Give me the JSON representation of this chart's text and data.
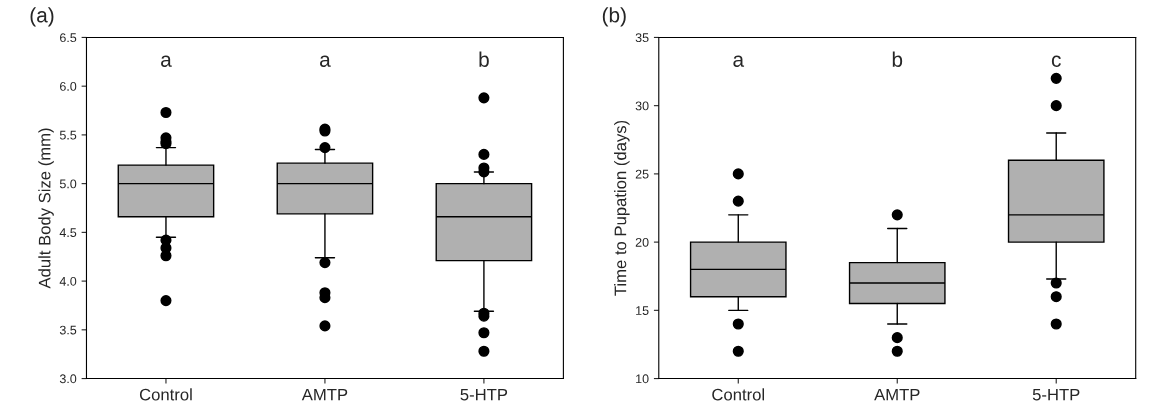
{
  "chart_data": [
    {
      "type": "box",
      "title": "(a)",
      "ylabel": "Adult Body Size (mm)",
      "categories": [
        "Control",
        "AMTP",
        "5-HTP"
      ],
      "ylim": [
        3.0,
        6.5
      ],
      "yticks": [
        {
          "value": 3,
          "label": "3.0"
        },
        {
          "value": 3.5,
          "label": "3.5"
        },
        {
          "value": 4,
          "label": "4.0"
        },
        {
          "value": 4.5,
          "label": "4.5"
        },
        {
          "value": 5,
          "label": "5.0"
        },
        {
          "value": 5.5,
          "label": "5.5"
        },
        {
          "value": 6,
          "label": "6.0"
        },
        {
          "value": 6.5,
          "label": "6.5"
        }
      ],
      "grid": false,
      "marker": "circle",
      "series": [
        {
          "color": "#b0b0b0",
          "boxes": [
            {
              "low": 4.45,
              "q1": 4.66,
              "median": 5.0,
              "q3": 5.19,
              "high": 5.37,
              "outliers": [
                5.73,
                5.47,
                5.43,
                5.41,
                4.42,
                4.34,
                4.26,
                3.8
              ]
            },
            {
              "low": 4.24,
              "q1": 4.69,
              "median": 5.0,
              "q3": 5.21,
              "high": 5.35,
              "outliers": [
                5.56,
                5.54,
                5.37,
                4.19,
                3.88,
                3.83,
                3.54
              ]
            },
            {
              "low": 3.69,
              "q1": 4.21,
              "median": 4.66,
              "q3": 5.0,
              "high": 5.12,
              "outliers": [
                5.88,
                5.3,
                5.16,
                5.12,
                3.67,
                3.64,
                3.47,
                3.28
              ]
            }
          ]
        }
      ],
      "annotations": [
        "a",
        "a",
        "b"
      ]
    },
    {
      "type": "box",
      "title": "(b)",
      "ylabel": "Time to Pupation (days)",
      "categories": [
        "Control",
        "AMTP",
        "5-HTP"
      ],
      "ylim": [
        10,
        35
      ],
      "yticks": [
        10,
        15,
        20,
        25,
        30,
        35
      ],
      "grid": false,
      "marker": "circle",
      "series": [
        {
          "color": "#b0b0b0",
          "boxes": [
            {
              "low": 15,
              "q1": 16,
              "median": 18,
              "q3": 20,
              "high": 22,
              "outliers": [
                25,
                23,
                14,
                12
              ]
            },
            {
              "low": 14,
              "q1": 15.5,
              "median": 17,
              "q3": 18.5,
              "high": 21,
              "outliers": [
                22,
                13,
                12
              ]
            },
            {
              "low": 17.3,
              "q1": 20,
              "median": 22,
              "q3": 26,
              "high": 28,
              "outliers": [
                32,
                30,
                17,
                16,
                14
              ]
            }
          ]
        }
      ],
      "annotations": [
        "a",
        "b",
        "c"
      ]
    }
  ]
}
